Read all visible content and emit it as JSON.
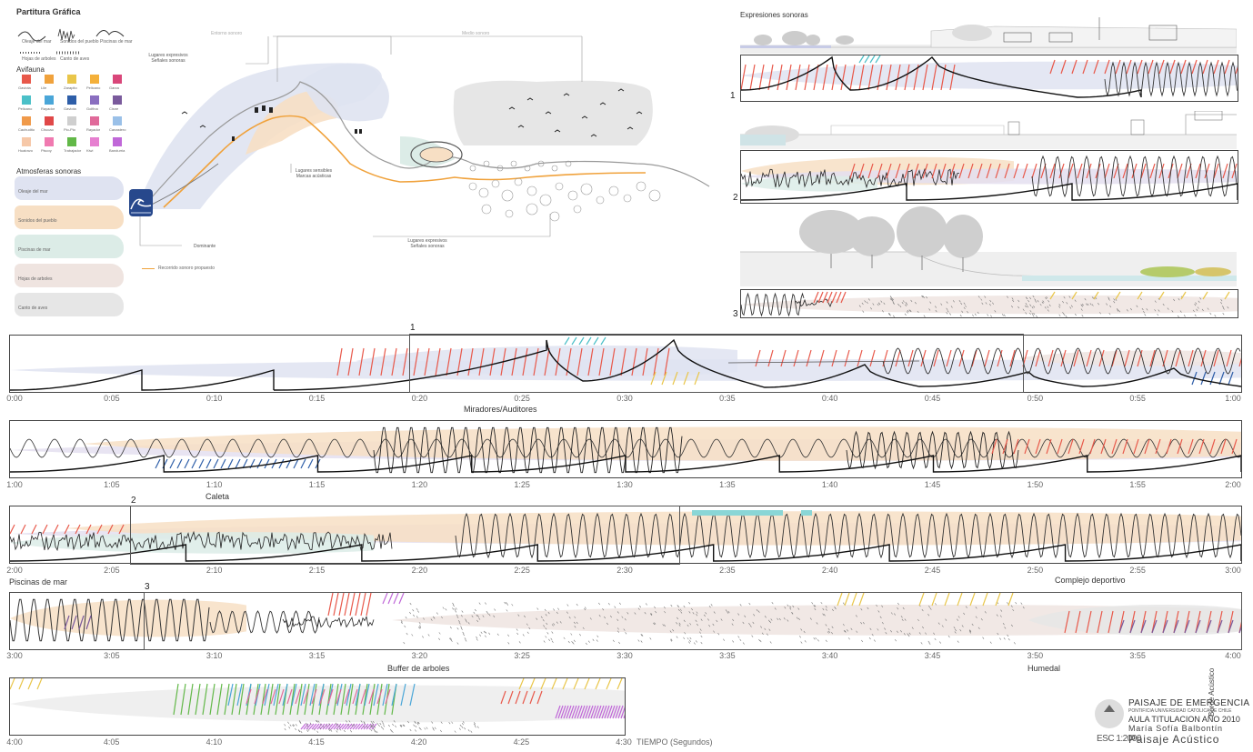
{
  "legend": {
    "title": "Partitura Gráfica",
    "symbols": [
      "Oleaje del mar",
      "Sonidos del pueblo",
      "Piscinas de mar",
      "Hojas de arboles",
      "Canto de aves"
    ],
    "avifauna_title": "Avifauna",
    "birds": [
      {
        "name": "Gaviota",
        "color": "#e8584a"
      },
      {
        "name": "Lile",
        "color": "#f0a23c"
      },
      {
        "name": "Zarapito",
        "color": "#e9c64a"
      },
      {
        "name": "Pelicano",
        "color": "#f4b03a"
      },
      {
        "name": "Garza",
        "color": "#d9477a"
      },
      {
        "name": "Pelicano",
        "color": "#4bc0c8"
      },
      {
        "name": "Rayador",
        "color": "#4aa6d8"
      },
      {
        "name": "Gaviota",
        "color": "#2e5ea8"
      },
      {
        "name": "Golfina",
        "color": "#8a6fc0"
      },
      {
        "name": "Cisne",
        "color": "#7a5a9c"
      },
      {
        "name": "Cachudito",
        "color": "#f09a4a"
      },
      {
        "name": "Chucao",
        "color": "#e04848"
      },
      {
        "name": "Pio-Pio",
        "color": "#cfcfcf"
      },
      {
        "name": "Rayador",
        "color": "#e06a9a"
      },
      {
        "name": "Canastero",
        "color": "#9ac0e8"
      },
      {
        "name": "Huairavo",
        "color": "#f6c8a8"
      },
      {
        "name": "Piscoy",
        "color": "#f07ab0"
      },
      {
        "name": "Trabajador",
        "color": "#62b848"
      },
      {
        "name": "Kiwi",
        "color": "#e67fd0"
      },
      {
        "name": "Bandurria",
        "color": "#c068d8"
      }
    ],
    "atmospheres_title": "Atmosferas sonoras",
    "atmospheres": [
      {
        "name": "Oleaje del mar",
        "color": "#dfe3f1"
      },
      {
        "name": "Sonidos del pueblo",
        "color": "#f7dfc4"
      },
      {
        "name": "Piscinas de mar",
        "color": "#dcece7"
      },
      {
        "name": "Hojas de arboles",
        "color": "#efe4e0"
      },
      {
        "name": "Canto de aves",
        "color": "#e6e6e6"
      }
    ],
    "route_label": "Recorrido sonoro propuesto"
  },
  "map": {
    "callouts": [
      "Entorno sonoro",
      "Lugares expresivos\nSeñales sonoras",
      "Medio sonoro",
      "Lugares sensibles\nMarcas acústicas",
      "Lugares expresivos\nSeñales sonoras",
      "Dominante"
    ]
  },
  "expresiones": {
    "title": "Expresiones sonoras",
    "panels": [
      "1",
      "2",
      "3"
    ]
  },
  "timeline": {
    "rows": [
      {
        "ticks": [
          "0:00",
          "0:05",
          "0:10",
          "0:15",
          "0:20",
          "0:25",
          "0:30",
          "0:35",
          "0:40",
          "0:45",
          "0:50",
          "0:55",
          "1:00"
        ]
      },
      {
        "ticks": [
          "1:00",
          "1:05",
          "1:10",
          "1:15",
          "1:20",
          "1:25",
          "1:30",
          "1:35",
          "1:40",
          "1:45",
          "1:50",
          "1:55",
          "2:00"
        ]
      },
      {
        "ticks": [
          "2:00",
          "2:05",
          "2:10",
          "2:15",
          "2:20",
          "2:25",
          "2:30",
          "2:35",
          "2:40",
          "2:45",
          "2:50",
          "2:55",
          "3:00"
        ]
      },
      {
        "ticks": [
          "3:00",
          "3:05",
          "3:10",
          "3:15",
          "3:20",
          "3:25",
          "3:30",
          "3:35",
          "3:40",
          "3:45",
          "3:50",
          "3:55",
          "4:00"
        ]
      },
      {
        "ticks": [
          "4:00",
          "4:05",
          "4:10",
          "4:15",
          "4:20",
          "4:25",
          "4:30"
        ]
      }
    ],
    "axis_label": "TIEMPO (Segundos)",
    "section_labels": [
      "Miradores/Auditores",
      "Caleta",
      "Piscinas de mar",
      "Complejo deportivo",
      "Buffer de arboles",
      "Humedal"
    ],
    "marker_labels": [
      "1",
      "2",
      "3"
    ]
  },
  "titleblock": {
    "project": "PAISAJE DE EMERGENCIA",
    "university": "PONTIFICIA UNIVERSIDAD CATOLICA DE CHILE",
    "aula": "AULA TITULACION AÑO 2010",
    "author": "María Sofía Balbontín",
    "sheet": "Paisaje Acústico",
    "scale": "ESC 1:2000",
    "vertical": "Borde Acústico"
  }
}
